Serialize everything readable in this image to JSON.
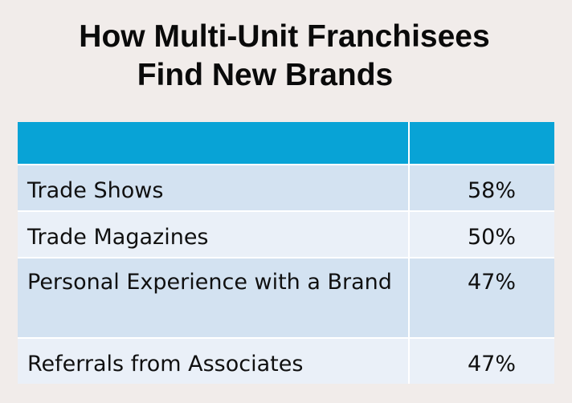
{
  "title": {
    "line1": "How Multi-Unit Franchisees",
    "line2": "Find New Brands"
  },
  "colors": {
    "header_background": "#08a3d6",
    "row_odd": "#d3e2f1",
    "row_even": "#eaf0f8",
    "page_background": "#f1ecea"
  },
  "chart_data": {
    "type": "table",
    "title": "How Multi-Unit Franchisees Find New Brands",
    "columns": [
      "",
      ""
    ],
    "rows": [
      {
        "label": "Trade Shows",
        "value": "58%"
      },
      {
        "label": "Trade Magazines",
        "value": "50%"
      },
      {
        "label": "Personal Experience with a Brand",
        "value": "47%"
      },
      {
        "label": "Referrals from Associates",
        "value": "47%"
      }
    ]
  }
}
